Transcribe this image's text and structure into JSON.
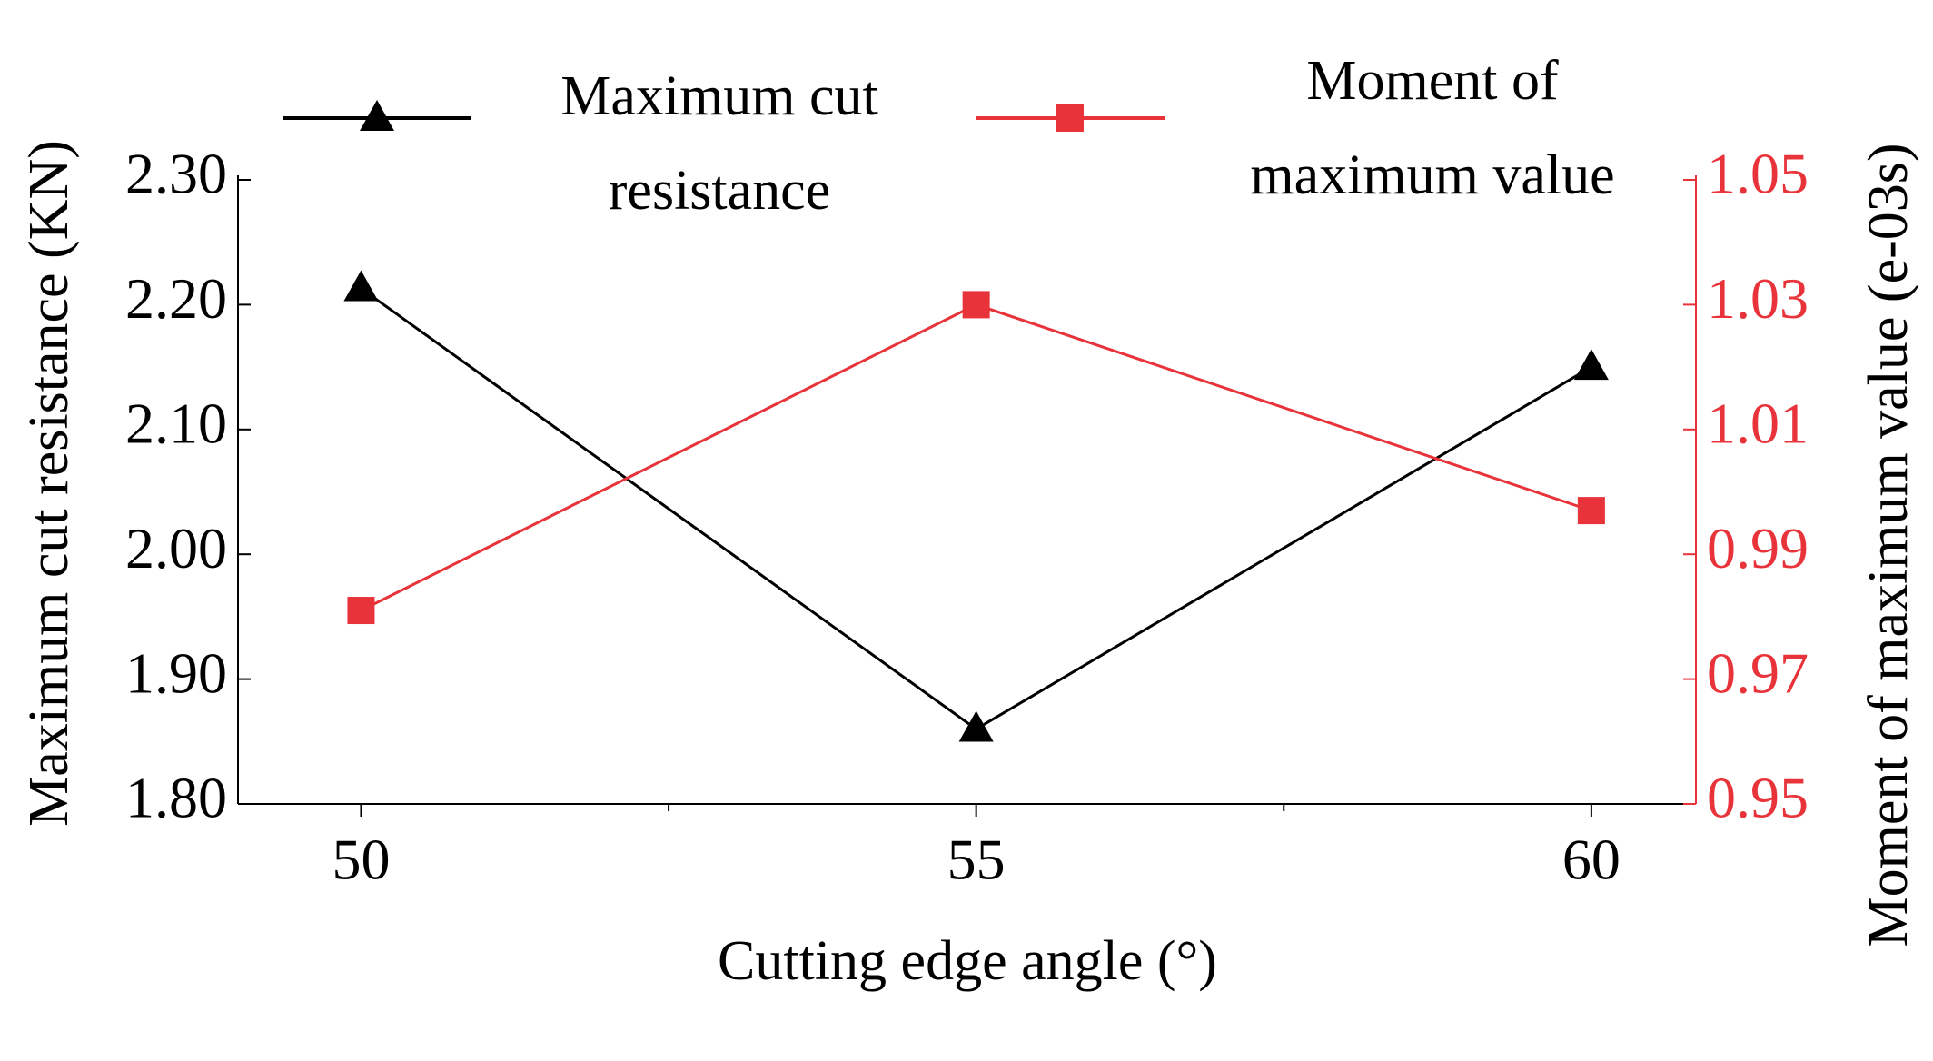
{
  "chart_data": {
    "type": "line",
    "x_label": "Cutting edge angle (°)",
    "y_label": "Maximum cut resistance (KN)",
    "y2_label": "Moment of maximum value (e-03s)",
    "x": [
      50,
      55,
      60
    ],
    "xlim": [
      49,
      60.85
    ],
    "xticks": [
      50,
      55,
      60
    ],
    "xminor_ticks": [
      52.5,
      57.5
    ],
    "ylim": [
      1.8,
      2.3
    ],
    "yticks": [
      {
        "value": 1.8,
        "label": "1.80"
      },
      {
        "value": 1.9,
        "label": "1.90"
      },
      {
        "value": 2.0,
        "label": "2.00"
      },
      {
        "value": 2.1,
        "label": "2.10"
      },
      {
        "value": 2.2,
        "label": "2.20"
      },
      {
        "value": 2.3,
        "label": "2.30"
      }
    ],
    "y2lim": [
      0.95,
      1.05
    ],
    "y2ticks": [
      0.95,
      0.97,
      0.99,
      1.01,
      1.03,
      1.05
    ],
    "y2_color": "#e8333a",
    "series": [
      {
        "name": "Maximum cut resistance",
        "color": "#000000",
        "marker": "triangle",
        "values": [
          2.213,
          1.86,
          2.15
        ]
      },
      {
        "name": "Moment of maximum value",
        "color": "#e8333a",
        "marker": "square",
        "axis": "y2",
        "values": [
          0.981,
          1.03,
          0.997
        ]
      }
    ]
  }
}
